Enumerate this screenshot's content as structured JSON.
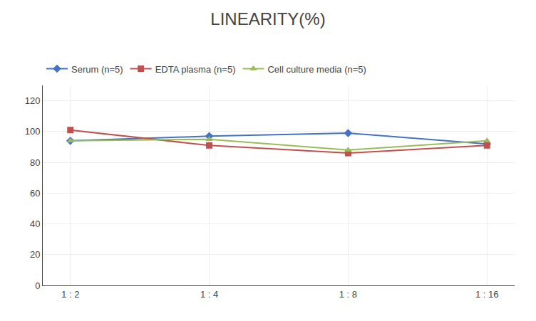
{
  "chart_data": {
    "type": "line",
    "title": "LINEARITY(%)",
    "categories": [
      "1 : 2",
      "1 : 4",
      "1 : 8",
      "1 : 16"
    ],
    "series": [
      {
        "name": "Serum (n=5)",
        "color": "#4472C4",
        "marker": "diamond",
        "values": [
          94,
          97,
          99,
          92
        ]
      },
      {
        "name": "EDTA plasma (n=5)",
        "color": "#C0504D",
        "marker": "square",
        "values": [
          101,
          91,
          86,
          91
        ]
      },
      {
        "name": "Cell culture media (n=5)",
        "color": "#9BBB59",
        "marker": "triangle-up",
        "values": [
          94,
          95,
          88,
          94
        ]
      }
    ],
    "ylim": [
      0,
      130
    ],
    "yticks": [
      0,
      20,
      40,
      60,
      80,
      100,
      120
    ],
    "grid": true,
    "legend": "top"
  }
}
